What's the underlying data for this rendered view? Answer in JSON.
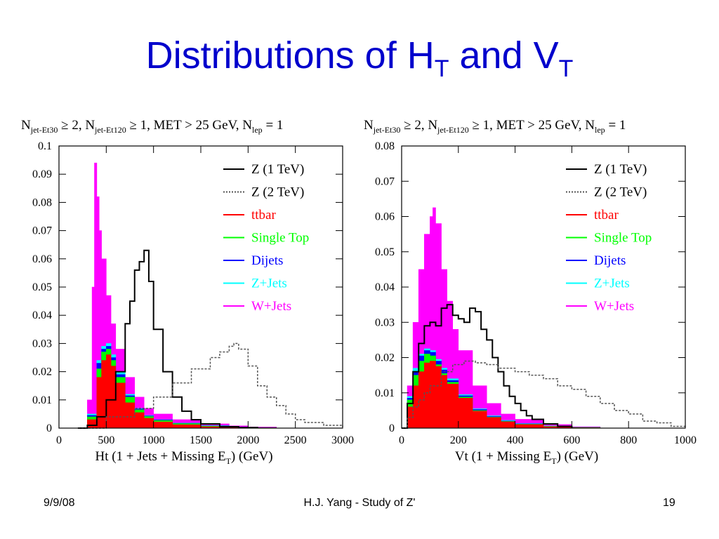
{
  "slide": {
    "title_main": "Distributions of H",
    "title_sub1": "T",
    "title_and": " and V",
    "title_sub2": "T",
    "footer_date": "9/9/08",
    "footer_center": "H.J. Yang - Study of Z'",
    "footer_page": "19"
  },
  "chart_data": [
    {
      "type": "histogram",
      "cuts_text": {
        "p1": "N",
        "s1": "jet-Et30",
        "p2": " ≥ 2, N",
        "s2": "jet-Et120",
        "p3": " ≥ 1, MET > 25 GeV, N",
        "s3": "lep",
        "p4": " = 1"
      },
      "xlabel": {
        "pre": "Ht (1 + Jets + Missing E",
        "sub": "T",
        "post": ") (GeV)"
      },
      "xlim": [
        0,
        3000
      ],
      "ylim": [
        0,
        0.1
      ],
      "xticks": [
        "0",
        "500",
        "1000",
        "1500",
        "2000",
        "2500",
        "3000"
      ],
      "yticks": [
        "0",
        "0.01",
        "0.02",
        "0.03",
        "0.04",
        "0.05",
        "0.06",
        "0.07",
        "0.08",
        "0.09",
        "0.1"
      ],
      "legend_position": "top-right",
      "stack": [
        {
          "name": "W+Jets",
          "color": "#ff00ff",
          "x": [
            200,
            300,
            350,
            375,
            400,
            425,
            450,
            500,
            550,
            600,
            700,
            800,
            900,
            1000,
            1200,
            1500,
            1800,
            2000,
            2300
          ],
          "y": [
            0,
            0.01,
            0.05,
            0.094,
            0.082,
            0.07,
            0.06,
            0.047,
            0.037,
            0.028,
            0.018,
            0.011,
            0.007,
            0.005,
            0.003,
            0.0015,
            0.0008,
            0.0004,
            0
          ]
        },
        {
          "name": "Z+Jets",
          "color": "#00ffff",
          "x": [
            200,
            300,
            400,
            450,
            500,
            550,
            600,
            700,
            800,
            900,
            1000,
            1200,
            1500,
            1800,
            2000,
            2300
          ],
          "y": [
            0,
            0.005,
            0.024,
            0.029,
            0.03,
            0.026,
            0.02,
            0.012,
            0.007,
            0.0045,
            0.003,
            0.0018,
            0.0009,
            0.0004,
            0.0002,
            0
          ]
        },
        {
          "name": "Dijets",
          "color": "#0000ff",
          "x": [
            200,
            300,
            400,
            450,
            500,
            550,
            600,
            700,
            800,
            900,
            1000,
            1200,
            1500,
            1800,
            2000,
            2300
          ],
          "y": [
            0,
            0.0045,
            0.023,
            0.028,
            0.029,
            0.025,
            0.019,
            0.0115,
            0.0068,
            0.0043,
            0.0029,
            0.0017,
            0.0008,
            0.0004,
            0.0002,
            0
          ]
        },
        {
          "name": "Single Top",
          "color": "#00ff00",
          "x": [
            200,
            300,
            400,
            450,
            500,
            550,
            600,
            700,
            800,
            900,
            1000,
            1200,
            1500,
            1800,
            2000,
            2300
          ],
          "y": [
            0,
            0.004,
            0.021,
            0.027,
            0.028,
            0.024,
            0.018,
            0.011,
            0.0065,
            0.0041,
            0.0027,
            0.0016,
            0.0007,
            0.0003,
            0.0001,
            0
          ]
        },
        {
          "name": "ttbar",
          "color": "#ff0000",
          "x": [
            200,
            300,
            400,
            450,
            500,
            550,
            600,
            700,
            800,
            900,
            1000,
            1200,
            1500,
            1800,
            2000,
            2300
          ],
          "y": [
            0,
            0.003,
            0.018,
            0.024,
            0.026,
            0.022,
            0.016,
            0.009,
            0.0055,
            0.0035,
            0.0022,
            0.0012,
            0.0005,
            0.0002,
            0.0001,
            0
          ]
        }
      ],
      "lines": [
        {
          "name": "Z (1 TeV)",
          "color": "#000000",
          "dash": "",
          "x": [
            200,
            300,
            400,
            500,
            600,
            700,
            750,
            800,
            850,
            900,
            950,
            1000,
            1100,
            1200,
            1300,
            1400,
            1500,
            1700,
            1900,
            2100
          ],
          "y": [
            0,
            0.001,
            0.004,
            0.01,
            0.02,
            0.037,
            0.045,
            0.056,
            0.059,
            0.063,
            0.052,
            0.035,
            0.02,
            0.011,
            0.006,
            0.003,
            0.0015,
            0.0005,
            0.0002,
            0
          ]
        },
        {
          "name": "Z (2 TeV)",
          "color": "#555555",
          "dash": "3,2",
          "x": [
            200,
            500,
            800,
            1000,
            1200,
            1400,
            1600,
            1700,
            1800,
            1850,
            1900,
            2000,
            2100,
            2200,
            2300,
            2400,
            2500,
            2600,
            2800,
            3000
          ],
          "y": [
            0,
            0.004,
            0.007,
            0.011,
            0.016,
            0.021,
            0.025,
            0.027,
            0.029,
            0.03,
            0.028,
            0.022,
            0.015,
            0.011,
            0.008,
            0.005,
            0.003,
            0.002,
            0.001,
            0.0005
          ]
        }
      ]
    },
    {
      "type": "histogram",
      "cuts_text": {
        "p1": "N",
        "s1": "jet-Et30",
        "p2": " ≥ 2, N",
        "s2": "jet-Et120",
        "p3": " ≥ 1, MET > 25 GeV, N",
        "s3": "lep",
        "p4": " = 1"
      },
      "xlabel": {
        "pre": "Vt (1 + Missing E",
        "sub": "T",
        "post": ") (GeV)"
      },
      "xlim": [
        0,
        1000
      ],
      "ylim": [
        0,
        0.08
      ],
      "xticks": [
        "0",
        "200",
        "400",
        "600",
        "800",
        "1000"
      ],
      "yticks": [
        "0",
        "0.01",
        "0.02",
        "0.03",
        "0.04",
        "0.05",
        "0.06",
        "0.07",
        "0.08"
      ],
      "legend_position": "top-right",
      "stack": [
        {
          "name": "W+Jets",
          "color": "#ff00ff",
          "x": [
            0,
            20,
            40,
            60,
            80,
            100,
            110,
            120,
            140,
            160,
            180,
            200,
            250,
            300,
            350,
            400,
            500,
            600,
            700
          ],
          "y": [
            0,
            0.012,
            0.03,
            0.045,
            0.055,
            0.06,
            0.0625,
            0.058,
            0.045,
            0.036,
            0.028,
            0.022,
            0.012,
            0.007,
            0.004,
            0.0025,
            0.001,
            0.0004,
            0
          ]
        },
        {
          "name": "Z+Jets",
          "color": "#00ffff",
          "x": [
            0,
            20,
            40,
            60,
            80,
            100,
            120,
            140,
            160,
            200,
            250,
            300,
            350,
            400,
            500,
            600,
            700
          ],
          "y": [
            0,
            0.009,
            0.017,
            0.021,
            0.0225,
            0.022,
            0.0195,
            0.017,
            0.014,
            0.0095,
            0.0055,
            0.0035,
            0.0022,
            0.0013,
            0.0006,
            0.0002,
            0
          ]
        },
        {
          "name": "Dijets",
          "color": "#0000ff",
          "x": [
            0,
            20,
            40,
            60,
            80,
            100,
            120,
            140,
            160,
            200,
            250,
            300,
            350,
            400,
            500,
            600,
            700
          ],
          "y": [
            0,
            0.0085,
            0.016,
            0.0205,
            0.022,
            0.0215,
            0.019,
            0.0165,
            0.0135,
            0.0092,
            0.0053,
            0.0033,
            0.002,
            0.0012,
            0.0005,
            0.0002,
            0
          ]
        },
        {
          "name": "Single Top",
          "color": "#00ff00",
          "x": [
            0,
            20,
            40,
            60,
            80,
            100,
            120,
            140,
            160,
            200,
            250,
            300,
            350,
            400,
            500,
            600,
            700
          ],
          "y": [
            0,
            0.008,
            0.015,
            0.019,
            0.021,
            0.0205,
            0.018,
            0.0155,
            0.013,
            0.0088,
            0.005,
            0.0031,
            0.0019,
            0.0011,
            0.0005,
            0.0002,
            0
          ]
        },
        {
          "name": "ttbar",
          "color": "#ff0000",
          "x": [
            0,
            20,
            40,
            60,
            80,
            100,
            120,
            140,
            160,
            200,
            250,
            300,
            350,
            400,
            500,
            600,
            700
          ],
          "y": [
            0,
            0.006,
            0.012,
            0.016,
            0.0185,
            0.019,
            0.0175,
            0.015,
            0.0125,
            0.0085,
            0.0048,
            0.003,
            0.0018,
            0.001,
            0.0004,
            0.0001,
            0
          ]
        }
      ],
      "lines": [
        {
          "name": "Z (1 TeV)",
          "color": "#000000",
          "dash": "",
          "x": [
            0,
            20,
            40,
            60,
            80,
            100,
            120,
            140,
            160,
            180,
            200,
            220,
            240,
            260,
            280,
            300,
            320,
            340,
            360,
            380,
            400,
            420,
            440,
            460,
            500,
            550,
            600
          ],
          "y": [
            0,
            0.007,
            0.016,
            0.024,
            0.029,
            0.03,
            0.029,
            0.034,
            0.035,
            0.032,
            0.031,
            0.03,
            0.034,
            0.033,
            0.028,
            0.025,
            0.02,
            0.016,
            0.012,
            0.009,
            0.007,
            0.005,
            0.0035,
            0.0025,
            0.0012,
            0.0005,
            0.0001
          ]
        },
        {
          "name": "Z (2 TeV)",
          "color": "#555555",
          "dash": "3,2",
          "x": [
            0,
            20,
            40,
            60,
            80,
            100,
            140,
            180,
            220,
            260,
            300,
            340,
            400,
            450,
            500,
            550,
            600,
            650,
            700,
            750,
            800,
            850,
            900,
            950,
            1000
          ],
          "y": [
            0,
            0.003,
            0.006,
            0.008,
            0.01,
            0.012,
            0.016,
            0.018,
            0.019,
            0.0185,
            0.018,
            0.017,
            0.016,
            0.015,
            0.014,
            0.012,
            0.011,
            0.009,
            0.007,
            0.005,
            0.004,
            0.002,
            0.0015,
            0.0005,
            0
          ]
        }
      ]
    }
  ]
}
